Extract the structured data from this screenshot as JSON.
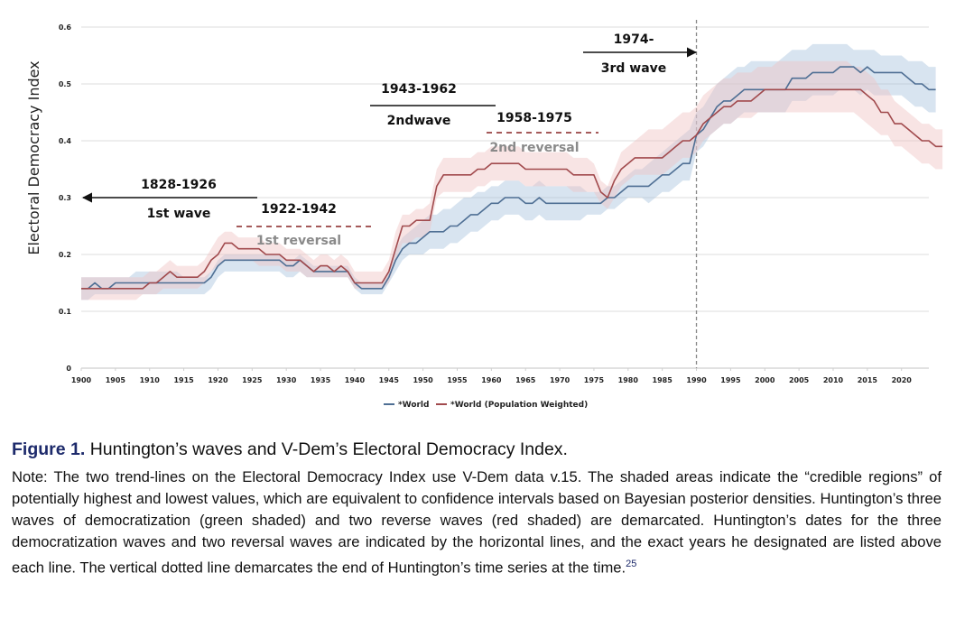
{
  "chart_data": {
    "type": "line",
    "title": "",
    "xlabel": "",
    "ylabel": "Electoral Democracy Index",
    "xlim": [
      1900,
      2024
    ],
    "ylim": [
      0,
      0.6
    ],
    "grid": true,
    "x_ticks": [
      "1900",
      "1905",
      "1910",
      "1915",
      "1920",
      "1925",
      "1930",
      "1935",
      "1940",
      "1945",
      "1950",
      "1955",
      "1960",
      "1965",
      "1970",
      "1975",
      "1980",
      "1985",
      "1990",
      "1995",
      "2000",
      "2005",
      "2010",
      "2015",
      "2020"
    ],
    "y_ticks": [
      "0",
      "0.1",
      "0.2",
      "0.3",
      "0.4",
      "0.5",
      "0.6"
    ],
    "legend_position": "bottom-center",
    "x_start": 1900,
    "series": [
      {
        "name": "*World",
        "color": "#4f6f94",
        "band_color": "#a9c3de",
        "values": [
          0.14,
          0.14,
          0.15,
          0.14,
          0.14,
          0.15,
          0.15,
          0.15,
          0.15,
          0.15,
          0.15,
          0.15,
          0.15,
          0.15,
          0.15,
          0.15,
          0.15,
          0.15,
          0.15,
          0.16,
          0.18,
          0.19,
          0.19,
          0.19,
          0.19,
          0.19,
          0.19,
          0.19,
          0.19,
          0.19,
          0.18,
          0.18,
          0.19,
          0.18,
          0.17,
          0.17,
          0.17,
          0.17,
          0.17,
          0.17,
          0.15,
          0.14,
          0.14,
          0.14,
          0.14,
          0.16,
          0.19,
          0.21,
          0.22,
          0.22,
          0.23,
          0.24,
          0.24,
          0.24,
          0.25,
          0.25,
          0.26,
          0.27,
          0.27,
          0.28,
          0.29,
          0.29,
          0.3,
          0.3,
          0.3,
          0.29,
          0.29,
          0.3,
          0.29,
          0.29,
          0.29,
          0.29,
          0.29,
          0.29,
          0.29,
          0.29,
          0.29,
          0.3,
          0.3,
          0.31,
          0.32,
          0.32,
          0.32,
          0.32,
          0.33,
          0.34,
          0.34,
          0.35,
          0.36,
          0.36,
          0.41,
          0.42,
          0.44,
          0.46,
          0.47,
          0.47,
          0.48,
          0.49,
          0.49,
          0.49,
          0.49,
          0.49,
          0.49,
          0.49,
          0.51,
          0.51,
          0.51,
          0.52,
          0.52,
          0.52,
          0.52,
          0.53,
          0.53,
          0.53,
          0.52,
          0.53,
          0.52,
          0.52,
          0.52,
          0.52,
          0.52,
          0.51,
          0.5,
          0.5,
          0.49,
          0.49
        ],
        "upper": [
          0.16,
          0.16,
          0.16,
          0.16,
          0.16,
          0.16,
          0.16,
          0.16,
          0.17,
          0.17,
          0.17,
          0.17,
          0.17,
          0.17,
          0.17,
          0.16,
          0.16,
          0.16,
          0.16,
          0.17,
          0.19,
          0.2,
          0.2,
          0.2,
          0.2,
          0.2,
          0.2,
          0.2,
          0.2,
          0.2,
          0.19,
          0.19,
          0.2,
          0.19,
          0.18,
          0.18,
          0.18,
          0.18,
          0.18,
          0.18,
          0.16,
          0.15,
          0.15,
          0.15,
          0.15,
          0.17,
          0.21,
          0.23,
          0.24,
          0.25,
          0.26,
          0.27,
          0.27,
          0.28,
          0.28,
          0.29,
          0.3,
          0.3,
          0.31,
          0.31,
          0.32,
          0.32,
          0.33,
          0.33,
          0.33,
          0.32,
          0.32,
          0.33,
          0.32,
          0.32,
          0.32,
          0.32,
          0.32,
          0.32,
          0.31,
          0.31,
          0.31,
          0.32,
          0.32,
          0.33,
          0.34,
          0.35,
          0.35,
          0.36,
          0.37,
          0.38,
          0.39,
          0.4,
          0.41,
          0.42,
          0.45,
          0.46,
          0.48,
          0.5,
          0.51,
          0.52,
          0.53,
          0.53,
          0.54,
          0.54,
          0.54,
          0.54,
          0.54,
          0.55,
          0.56,
          0.56,
          0.56,
          0.57,
          0.57,
          0.57,
          0.57,
          0.57,
          0.57,
          0.56,
          0.56,
          0.56,
          0.56,
          0.55,
          0.55,
          0.55,
          0.55,
          0.54,
          0.54,
          0.54,
          0.53,
          0.53
        ],
        "lower": [
          0.12,
          0.12,
          0.13,
          0.13,
          0.13,
          0.13,
          0.13,
          0.13,
          0.13,
          0.13,
          0.13,
          0.13,
          0.13,
          0.13,
          0.13,
          0.13,
          0.13,
          0.13,
          0.13,
          0.14,
          0.16,
          0.17,
          0.17,
          0.17,
          0.17,
          0.17,
          0.17,
          0.17,
          0.17,
          0.17,
          0.16,
          0.16,
          0.17,
          0.16,
          0.16,
          0.16,
          0.16,
          0.16,
          0.16,
          0.16,
          0.14,
          0.13,
          0.13,
          0.13,
          0.13,
          0.15,
          0.17,
          0.19,
          0.2,
          0.2,
          0.2,
          0.21,
          0.21,
          0.21,
          0.22,
          0.22,
          0.23,
          0.24,
          0.24,
          0.25,
          0.26,
          0.26,
          0.27,
          0.27,
          0.27,
          0.26,
          0.26,
          0.27,
          0.26,
          0.26,
          0.26,
          0.26,
          0.26,
          0.26,
          0.27,
          0.27,
          0.27,
          0.28,
          0.28,
          0.29,
          0.3,
          0.3,
          0.3,
          0.29,
          0.3,
          0.31,
          0.31,
          0.32,
          0.33,
          0.33,
          0.38,
          0.39,
          0.41,
          0.42,
          0.43,
          0.43,
          0.44,
          0.45,
          0.45,
          0.45,
          0.45,
          0.45,
          0.45,
          0.45,
          0.47,
          0.47,
          0.47,
          0.48,
          0.48,
          0.48,
          0.48,
          0.49,
          0.49,
          0.49,
          0.48,
          0.49,
          0.48,
          0.48,
          0.48,
          0.48,
          0.48,
          0.47,
          0.46,
          0.46,
          0.45,
          0.45
        ]
      },
      {
        "name": "*World (Population Weighted)",
        "color": "#a14a4d",
        "band_color": "#efc4c3",
        "values": [
          0.14,
          0.14,
          0.14,
          0.14,
          0.14,
          0.14,
          0.14,
          0.14,
          0.14,
          0.14,
          0.15,
          0.15,
          0.16,
          0.17,
          0.16,
          0.16,
          0.16,
          0.16,
          0.17,
          0.19,
          0.2,
          0.22,
          0.22,
          0.21,
          0.21,
          0.21,
          0.21,
          0.2,
          0.2,
          0.2,
          0.19,
          0.19,
          0.19,
          0.18,
          0.17,
          0.18,
          0.18,
          0.17,
          0.18,
          0.17,
          0.15,
          0.15,
          0.15,
          0.15,
          0.15,
          0.17,
          0.21,
          0.25,
          0.25,
          0.26,
          0.26,
          0.26,
          0.32,
          0.34,
          0.34,
          0.34,
          0.34,
          0.34,
          0.35,
          0.35,
          0.36,
          0.36,
          0.36,
          0.36,
          0.36,
          0.35,
          0.35,
          0.35,
          0.35,
          0.35,
          0.35,
          0.35,
          0.34,
          0.34,
          0.34,
          0.34,
          0.31,
          0.3,
          0.33,
          0.35,
          0.36,
          0.37,
          0.37,
          0.37,
          0.37,
          0.37,
          0.38,
          0.39,
          0.4,
          0.4,
          0.41,
          0.43,
          0.44,
          0.45,
          0.46,
          0.46,
          0.47,
          0.47,
          0.47,
          0.48,
          0.49,
          0.49,
          0.49,
          0.49,
          0.49,
          0.49,
          0.49,
          0.49,
          0.49,
          0.49,
          0.49,
          0.49,
          0.49,
          0.49,
          0.49,
          0.48,
          0.47,
          0.45,
          0.45,
          0.43,
          0.43,
          0.42,
          0.41,
          0.4,
          0.4,
          0.39,
          0.39
        ],
        "upper": [
          0.16,
          0.16,
          0.16,
          0.16,
          0.16,
          0.16,
          0.16,
          0.16,
          0.16,
          0.16,
          0.17,
          0.17,
          0.18,
          0.19,
          0.18,
          0.18,
          0.18,
          0.18,
          0.19,
          0.21,
          0.23,
          0.24,
          0.24,
          0.23,
          0.23,
          0.23,
          0.23,
          0.22,
          0.22,
          0.22,
          0.21,
          0.21,
          0.21,
          0.2,
          0.19,
          0.2,
          0.2,
          0.19,
          0.2,
          0.19,
          0.17,
          0.17,
          0.17,
          0.17,
          0.17,
          0.19,
          0.24,
          0.27,
          0.27,
          0.28,
          0.28,
          0.29,
          0.35,
          0.37,
          0.37,
          0.37,
          0.37,
          0.37,
          0.38,
          0.38,
          0.39,
          0.39,
          0.39,
          0.39,
          0.39,
          0.38,
          0.38,
          0.38,
          0.38,
          0.38,
          0.38,
          0.38,
          0.37,
          0.37,
          0.37,
          0.36,
          0.33,
          0.32,
          0.35,
          0.38,
          0.39,
          0.4,
          0.41,
          0.42,
          0.42,
          0.42,
          0.43,
          0.44,
          0.45,
          0.45,
          0.46,
          0.48,
          0.49,
          0.5,
          0.51,
          0.51,
          0.52,
          0.52,
          0.52,
          0.53,
          0.53,
          0.53,
          0.54,
          0.54,
          0.54,
          0.54,
          0.54,
          0.54,
          0.54,
          0.54,
          0.54,
          0.54,
          0.54,
          0.53,
          0.53,
          0.52,
          0.51,
          0.49,
          0.49,
          0.47,
          0.46,
          0.45,
          0.44,
          0.43,
          0.43,
          0.42,
          0.42
        ],
        "lower": [
          0.12,
          0.12,
          0.12,
          0.12,
          0.12,
          0.12,
          0.12,
          0.12,
          0.12,
          0.13,
          0.13,
          0.13,
          0.14,
          0.14,
          0.14,
          0.14,
          0.14,
          0.14,
          0.15,
          0.17,
          0.18,
          0.19,
          0.19,
          0.19,
          0.19,
          0.19,
          0.18,
          0.18,
          0.18,
          0.18,
          0.17,
          0.17,
          0.17,
          0.16,
          0.16,
          0.16,
          0.16,
          0.16,
          0.16,
          0.16,
          0.14,
          0.14,
          0.14,
          0.14,
          0.14,
          0.15,
          0.19,
          0.22,
          0.22,
          0.23,
          0.23,
          0.24,
          0.3,
          0.31,
          0.31,
          0.31,
          0.31,
          0.31,
          0.32,
          0.32,
          0.33,
          0.33,
          0.33,
          0.33,
          0.33,
          0.32,
          0.32,
          0.32,
          0.32,
          0.32,
          0.32,
          0.32,
          0.31,
          0.31,
          0.31,
          0.31,
          0.29,
          0.28,
          0.3,
          0.32,
          0.33,
          0.34,
          0.34,
          0.34,
          0.34,
          0.34,
          0.35,
          0.36,
          0.37,
          0.37,
          0.38,
          0.4,
          0.41,
          0.42,
          0.43,
          0.43,
          0.44,
          0.44,
          0.44,
          0.45,
          0.45,
          0.45,
          0.45,
          0.45,
          0.45,
          0.45,
          0.45,
          0.45,
          0.45,
          0.45,
          0.45,
          0.45,
          0.45,
          0.45,
          0.44,
          0.43,
          0.42,
          0.41,
          0.41,
          0.39,
          0.39,
          0.38,
          0.37,
          0.36,
          0.36,
          0.35,
          0.35
        ]
      }
    ],
    "annotations": [
      {
        "id": "first-wave",
        "years": "1828-1926",
        "label": "1st wave",
        "kind": "wave",
        "x_from": 1926,
        "x_to": 1900,
        "y": 0.3,
        "arrow": "left"
      },
      {
        "id": "first-reversal",
        "years": "1922-1942",
        "label": "1st reversal",
        "kind": "reversal",
        "x_from": 1922,
        "x_to": 1942,
        "y": 0.25
      },
      {
        "id": "second-wave",
        "years": "1943-1962",
        "label": "2ndwave",
        "kind": "wave",
        "x_from": 1943,
        "x_to": 1962,
        "y": 0.46
      },
      {
        "id": "second-reversal",
        "years": "1958-1975",
        "label": "2nd reversal",
        "kind": "reversal",
        "x_from": 1958,
        "x_to": 1975,
        "y": 0.41
      },
      {
        "id": "third-wave",
        "years": "1974-",
        "label": "3rd wave",
        "kind": "wave",
        "x_from": 1974,
        "x_to": 1990,
        "y": 0.55,
        "arrow": "right"
      }
    ],
    "vertical_marker": {
      "x": 1990,
      "style": "dotted",
      "meaning": "end of Huntington's time series"
    }
  },
  "caption": {
    "label": "Figure 1.",
    "title": " Huntington’s waves and V-Dem’s Electoral Democracy Index.",
    "note": "Note: The two trend-lines on the Electoral Democracy Index use V-Dem data v.15. The shaded areas indicate the “credible regions” of potentially highest and lowest values, which are equivalent to confidence intervals based on Bayesian posterior densities. Huntington’s three waves of democratization (green shaded) and two reverse waves (red shaded) are demarcated. Huntington’s dates for the three democratization waves and two reversal waves are indicated by the horizontal lines, and the exact years he designated are listed above each line. The vertical dotted line demarcates the end of Huntington’s time series at the time.",
    "footnote": "25"
  }
}
